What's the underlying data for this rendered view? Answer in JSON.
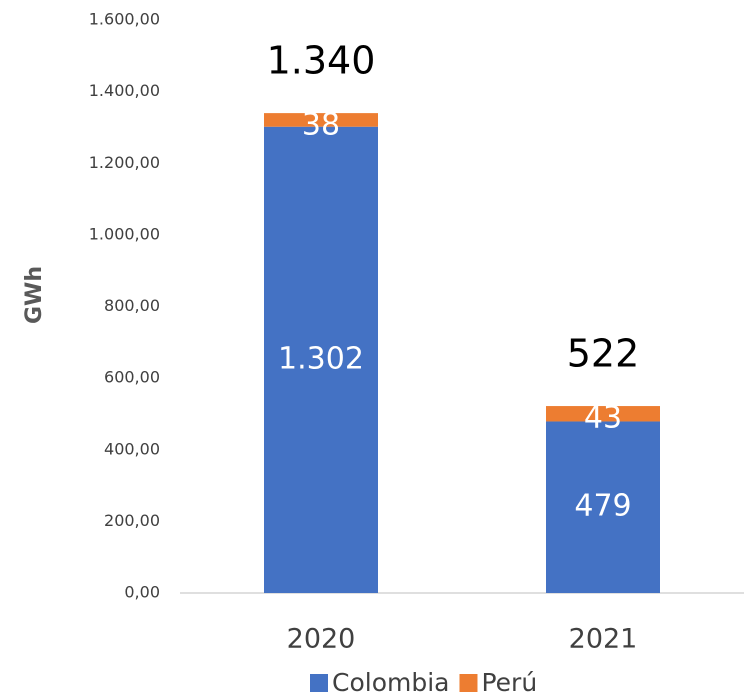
{
  "chart_data": {
    "type": "stacked-bar",
    "y_label": "GWh",
    "categories": [
      "2020",
      "2021"
    ],
    "series": [
      {
        "name": "Colombia",
        "color": "#4472c4",
        "values": [
          1302,
          479
        ],
        "value_labels": [
          "1.302",
          "479"
        ]
      },
      {
        "name": "Perú",
        "color": "#ed7d31",
        "values": [
          38,
          43
        ]
      }
    ],
    "totals": {
      "values": [
        1340,
        522
      ],
      "value_labels": [
        "1.340",
        "522"
      ]
    },
    "ylim": [
      0,
      1600
    ],
    "yticks": [
      {
        "value": 0,
        "label": "0,00"
      },
      {
        "value": 200,
        "label": "200,00"
      },
      {
        "value": 400,
        "label": "400,00"
      },
      {
        "value": 600,
        "label": "600,00"
      },
      {
        "value": 800,
        "label": "800,00"
      },
      {
        "value": 1000,
        "label": "1.000,00"
      },
      {
        "value": 1200,
        "label": "1.200,00"
      },
      {
        "value": 1400,
        "label": "1.400,00"
      },
      {
        "value": 1600,
        "label": "1.600,00"
      }
    ],
    "grid": false,
    "legend": "bottom"
  }
}
